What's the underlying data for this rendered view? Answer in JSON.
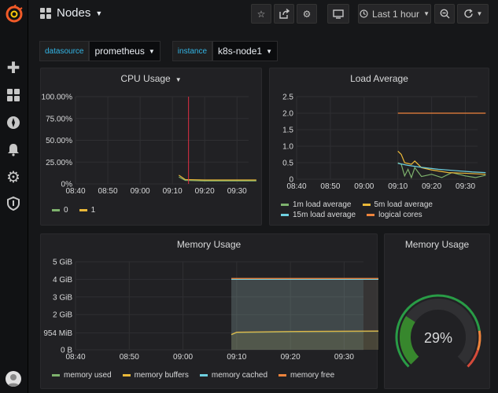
{
  "topbar": {
    "title": "Nodes",
    "time_range": "Last 1 hour",
    "icons": [
      "star-icon",
      "share-icon",
      "settings-icon",
      "tv-icon",
      "clock-icon",
      "zoom-out-icon",
      "refresh-icon"
    ]
  },
  "variables": [
    {
      "label": "datasource",
      "value": "prometheus"
    },
    {
      "label": "instance",
      "value": "k8s-node1"
    }
  ],
  "sidenav": {
    "icons": [
      "grafana-logo-icon",
      "plus-icon",
      "dashboards-icon",
      "explore-icon",
      "bell-icon",
      "gear-icon",
      "shield-icon",
      "avatar"
    ]
  },
  "colors": {
    "green": "#7eb26d",
    "yellow": "#eab839",
    "blue": "#6ed0e0",
    "orange": "#ef843c",
    "red": "#e24d42",
    "accent": "#33b5e5"
  },
  "chart_data": [
    {
      "id": "cpu",
      "type": "line",
      "title": "CPU Usage",
      "x": [
        "08:40",
        "08:50",
        "09:00",
        "09:10",
        "09:20",
        "09:30"
      ],
      "y_ticks": [
        "100.00%",
        "75.00%",
        "50.00%",
        "25.00%",
        "0%"
      ],
      "ylim": [
        0,
        100
      ],
      "series": [
        {
          "name": "0",
          "color": "#7eb26d",
          "points": [
            [
              9.12,
              8
            ],
            [
              9.14,
              4
            ],
            [
              9.2,
              3.5
            ],
            [
              9.3,
              3.5
            ],
            [
              9.36,
              3.5
            ]
          ]
        },
        {
          "name": "1",
          "color": "#eab839",
          "points": [
            [
              9.12,
              10
            ],
            [
              9.14,
              5
            ],
            [
              9.2,
              4.5
            ],
            [
              9.3,
              4.5
            ],
            [
              9.36,
              4.5
            ]
          ]
        }
      ],
      "annotation_x": 9.155
    },
    {
      "id": "load",
      "type": "line",
      "title": "Load Average",
      "x": [
        "08:40",
        "08:50",
        "09:00",
        "09:10",
        "09:20",
        "09:30"
      ],
      "y_ticks": [
        "2.5",
        "2.0",
        "1.5",
        "1.0",
        "0.5",
        "0"
      ],
      "ylim": [
        0,
        2.5
      ],
      "series": [
        {
          "name": "1m load average",
          "color": "#7eb26d",
          "points": [
            [
              9.1,
              0.5
            ],
            [
              9.11,
              0.45
            ],
            [
              9.12,
              0.1
            ],
            [
              9.13,
              0.3
            ],
            [
              9.14,
              0.05
            ],
            [
              9.155,
              0.35
            ],
            [
              9.17,
              0.08
            ],
            [
              9.2,
              0.15
            ],
            [
              9.23,
              0.05
            ],
            [
              9.26,
              0.2
            ],
            [
              9.3,
              0.1
            ],
            [
              9.33,
              0.05
            ],
            [
              9.36,
              0.12
            ]
          ]
        },
        {
          "name": "5m load average",
          "color": "#eab839",
          "points": [
            [
              9.1,
              0.85
            ],
            [
              9.11,
              0.75
            ],
            [
              9.12,
              0.5
            ],
            [
              9.14,
              0.45
            ],
            [
              9.155,
              0.55
            ],
            [
              9.17,
              0.35
            ],
            [
              9.2,
              0.28
            ],
            [
              9.25,
              0.2
            ],
            [
              9.3,
              0.18
            ],
            [
              9.36,
              0.15
            ]
          ]
        },
        {
          "name": "15m load average",
          "color": "#6ed0e0",
          "points": [
            [
              9.1,
              0.48
            ],
            [
              9.13,
              0.42
            ],
            [
              9.17,
              0.36
            ],
            [
              9.22,
              0.3
            ],
            [
              9.27,
              0.26
            ],
            [
              9.32,
              0.22
            ],
            [
              9.36,
              0.2
            ]
          ]
        },
        {
          "name": "logical cores",
          "color": "#ef843c",
          "points": [
            [
              9.1,
              2.0
            ],
            [
              9.36,
              2.0
            ]
          ]
        }
      ]
    },
    {
      "id": "mem",
      "type": "area",
      "title": "Memory Usage",
      "x": [
        "08:40",
        "08:50",
        "09:00",
        "09:10",
        "09:20",
        "09:30"
      ],
      "y_ticks": [
        "5 GiB",
        "4 GiB",
        "3 GiB",
        "2 GiB",
        "954 MiB",
        "0 B"
      ],
      "ylim": [
        0,
        5
      ],
      "series": [
        {
          "name": "memory used",
          "color": "#7eb26d",
          "points": [
            [
              9.09,
              0.85
            ],
            [
              9.1,
              0.98
            ],
            [
              9.2,
              1.02
            ],
            [
              9.38,
              1.05
            ]
          ]
        },
        {
          "name": "memory buffers",
          "color": "#eab839",
          "points": [
            [
              9.09,
              0.87
            ],
            [
              9.1,
              1.0
            ],
            [
              9.2,
              1.04
            ],
            [
              9.38,
              1.07
            ]
          ]
        },
        {
          "name": "memory cached",
          "color": "#6ed0e0",
          "points": [
            [
              9.09,
              4.0
            ],
            [
              9.38,
              4.0
            ]
          ]
        },
        {
          "name": "memory free",
          "color": "#ef843c",
          "points": [
            [
              9.09,
              4.05
            ],
            [
              9.38,
              4.05
            ]
          ]
        }
      ],
      "highlight_from": 9.09
    },
    {
      "id": "gauge",
      "type": "gauge",
      "title": "Memory Usage",
      "value": 29,
      "value_label": "29%",
      "thresholds": [
        {
          "to": 80,
          "color": "#299c46"
        },
        {
          "to": 90,
          "color": "#ef843c"
        },
        {
          "to": 100,
          "color": "#d44a3a"
        }
      ]
    }
  ]
}
